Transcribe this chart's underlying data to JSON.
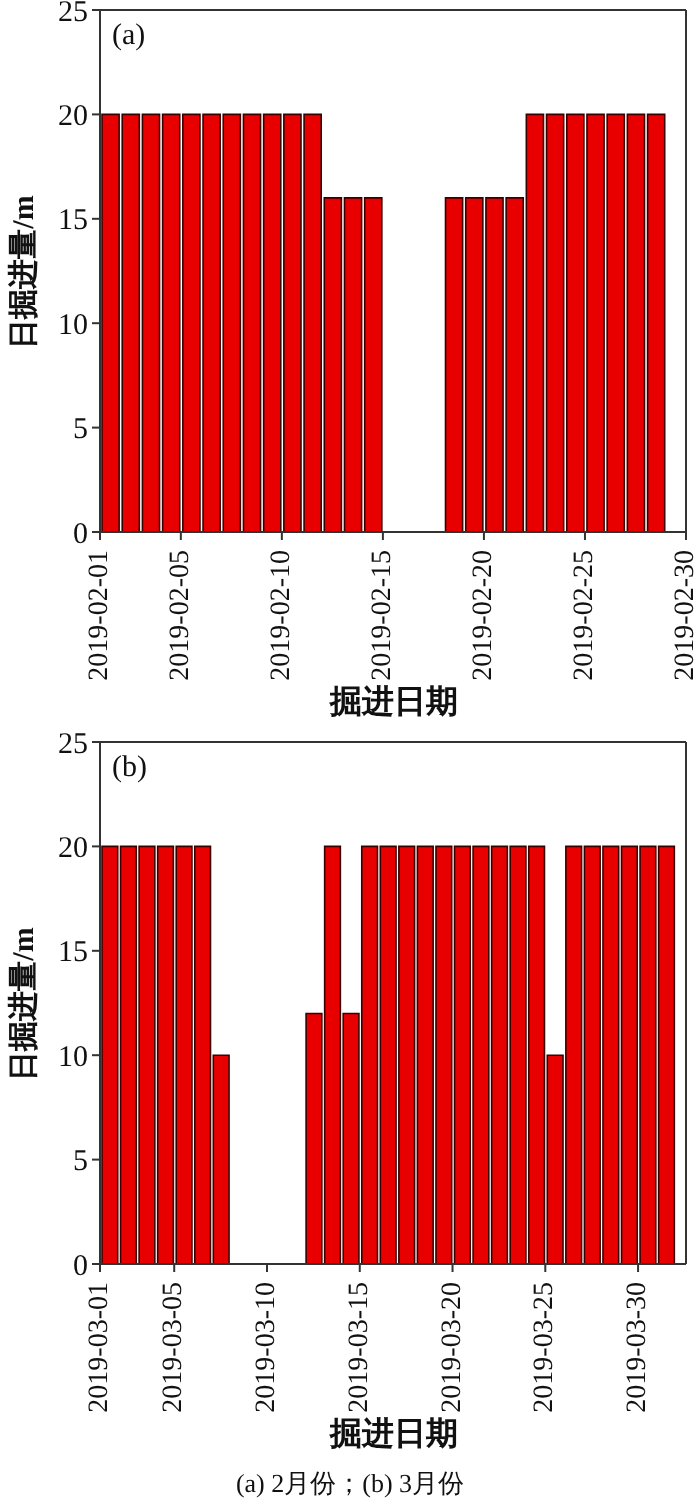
{
  "chart_data": [
    {
      "type": "bar",
      "title": "(a)",
      "xlabel": "掘进日期",
      "ylabel": "日掘进量/m",
      "color": "#e80000",
      "x": [
        "2019-02-01T12:00",
        "2019-02-02T12:00",
        "2019-02-03T12:00",
        "2019-02-04T12:00",
        "2019-02-05T12:00",
        "2019-02-06T12:00",
        "2019-02-07T12:00",
        "2019-02-08T12:00",
        "2019-02-09T12:00",
        "2019-02-10T12:00",
        "2019-02-11T12:00",
        "2019-02-12T12:00",
        "2019-02-13T12:00",
        "2019-02-14T12:00",
        "2019-02-18T12:00",
        "2019-02-19T12:00",
        "2019-02-20T12:00",
        "2019-02-21T12:00",
        "2019-02-22T12:00",
        "2019-02-23T12:00",
        "2019-02-24T12:00",
        "2019-02-25T12:00",
        "2019-02-26T12:00",
        "2019-02-27T12:00",
        "2019-02-28T12:00"
      ],
      "values": [
        20,
        20,
        20,
        20,
        20,
        20,
        20,
        20,
        20,
        20,
        20,
        16,
        16,
        16,
        16,
        16,
        16,
        16,
        20,
        20,
        20,
        20,
        20,
        20,
        20
      ],
      "xlim": [
        "2019-02-01",
        "2019-03-02"
      ],
      "xticks": [
        "2019-02-01",
        "2019-02-05",
        "2019-02-10",
        "2019-02-15",
        "2019-02-20",
        "2019-02-25",
        {
          "value": "2019-03-02",
          "label": "2019-02-30"
        }
      ],
      "ylim": [
        0,
        25
      ],
      "yticks": [
        0,
        5,
        10,
        15,
        20,
        25
      ]
    },
    {
      "type": "bar",
      "title": "(b)",
      "xlabel": "掘进日期",
      "ylabel": "日掘进量/m",
      "color": "#e80000",
      "x": [
        "2019-03-01T12:00",
        "2019-03-02T12:00",
        "2019-03-03T12:00",
        "2019-03-04T12:00",
        "2019-03-05T12:00",
        "2019-03-06T12:00",
        "2019-03-07T12:00",
        "2019-03-12T12:00",
        "2019-03-13T12:00",
        "2019-03-14T12:00",
        "2019-03-15T12:00",
        "2019-03-16T12:00",
        "2019-03-17T12:00",
        "2019-03-18T12:00",
        "2019-03-19T12:00",
        "2019-03-20T12:00",
        "2019-03-21T12:00",
        "2019-03-22T12:00",
        "2019-03-23T12:00",
        "2019-03-24T12:00",
        "2019-03-25T12:00",
        "2019-03-26T12:00",
        "2019-03-27T12:00",
        "2019-03-28T12:00",
        "2019-03-29T12:00",
        "2019-03-30T12:00",
        "2019-03-31T12:00"
      ],
      "values": [
        20,
        20,
        20,
        20,
        20,
        20,
        10,
        12,
        20,
        12,
        20,
        20,
        20,
        20,
        20,
        20,
        20,
        20,
        20,
        20,
        10,
        20,
        20,
        20,
        20,
        20,
        20
      ],
      "xlim": [
        "2019-03-01",
        "2019-04-01T14:00"
      ],
      "xticks": [
        "2019-03-01",
        "2019-03-05",
        "2019-03-10",
        "2019-03-15",
        "2019-03-20",
        "2019-03-25",
        "2019-03-30"
      ],
      "ylim": [
        0,
        25
      ],
      "yticks": [
        0,
        5,
        10,
        15,
        20,
        25
      ],
      "annotations": [
        "(a) 2月份；(b) 3月份"
      ]
    }
  ]
}
